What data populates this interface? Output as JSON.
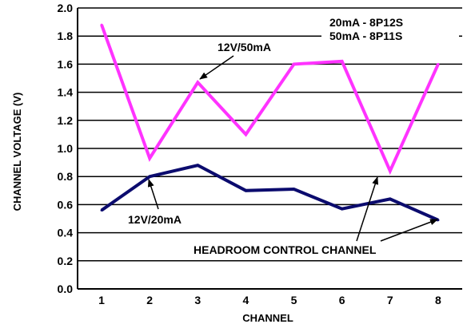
{
  "chart_data": {
    "type": "line",
    "x": [
      1,
      2,
      3,
      4,
      5,
      6,
      7,
      8
    ],
    "xlabel": "CHANNEL",
    "ylabel": "CHANNEL VOLTAGE (V)",
    "ylim": [
      0,
      2.0
    ],
    "xlim": [
      0.5,
      8.5
    ],
    "x_ticks": [
      "1",
      "2",
      "3",
      "4",
      "5",
      "6",
      "7",
      "8"
    ],
    "y_ticks": [
      "0.0",
      "0.2",
      "0.4",
      "0.6",
      "0.8",
      "1.0",
      "1.2",
      "1.4",
      "1.6",
      "1.8",
      "2.0"
    ],
    "grid": "horizontal",
    "series": [
      {
        "name": "12V/50mA",
        "color": "#ff33ff",
        "values": [
          1.88,
          0.93,
          1.47,
          1.1,
          1.6,
          1.62,
          0.84,
          1.6
        ]
      },
      {
        "name": "12V/20mA",
        "color": "#0b0b6e",
        "values": [
          0.56,
          0.8,
          0.88,
          0.7,
          0.71,
          0.57,
          0.64,
          0.49
        ]
      }
    ],
    "annotations": {
      "part_line_1": "20mA - 8P12S",
      "part_line_2": "50mA - 8P11S",
      "headroom": "HEADROOM CONTROL CHANNEL"
    }
  }
}
